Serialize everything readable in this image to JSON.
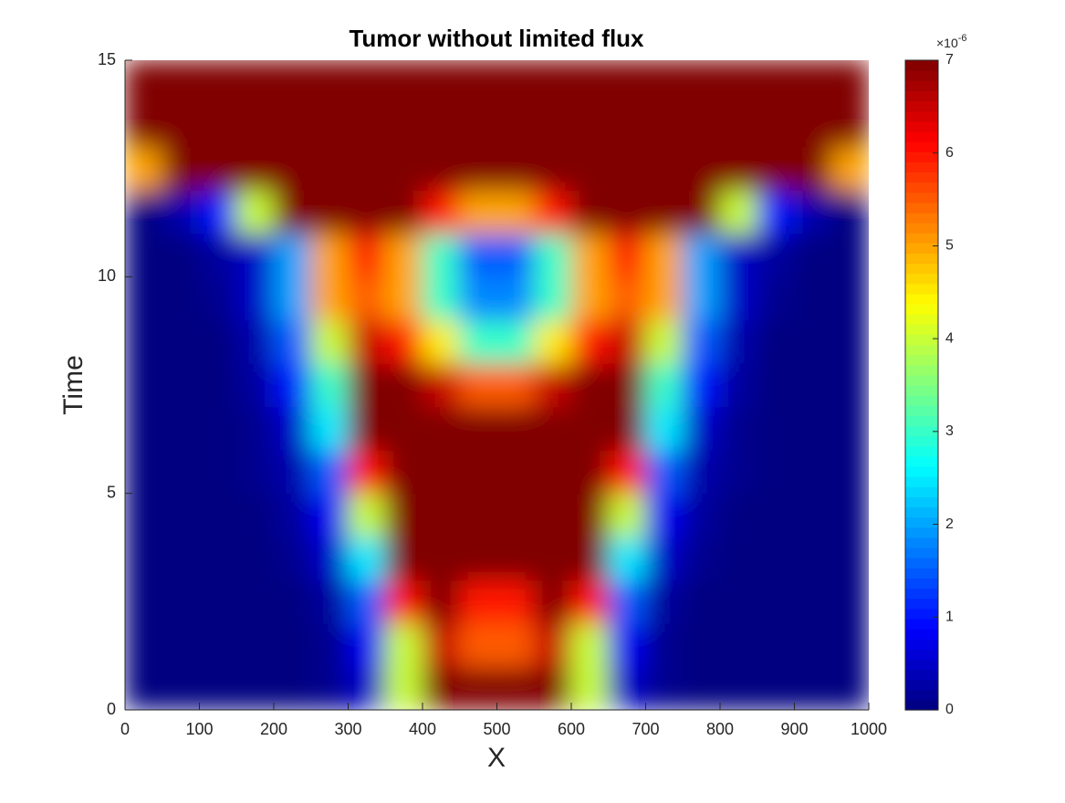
{
  "chart_data": {
    "type": "heatmap",
    "title": "Tumor without limited flux",
    "xlabel": "X",
    "ylabel": "Time",
    "colormap": "jet",
    "xlim": [
      0,
      1000
    ],
    "xticks": [
      0,
      100,
      200,
      300,
      400,
      500,
      600,
      700,
      800,
      900,
      1000
    ],
    "ylim": [
      0,
      15
    ],
    "yticks": [
      0,
      5,
      10,
      15
    ],
    "clim": [
      0,
      7
    ],
    "cticks": [
      0,
      1,
      2,
      3,
      4,
      5,
      6,
      7
    ],
    "colorbar_multiplier": {
      "base": "×10",
      "exponent": "-6"
    },
    "x": [
      25,
      75,
      125,
      175,
      225,
      275,
      325,
      375,
      425,
      475,
      525,
      575,
      625,
      675,
      725,
      775,
      825,
      875,
      925,
      975
    ],
    "y": [
      0.5,
      1.5,
      2.5,
      3.5,
      4.5,
      5.5,
      6.5,
      7.5,
      8.5,
      9.5,
      10.5,
      11.5,
      12.5,
      13.5,
      14.5
    ],
    "z": [
      [
        0,
        0,
        0,
        0,
        0,
        0.1,
        0.5,
        4,
        7,
        7,
        7,
        7,
        4,
        0.5,
        0.1,
        0,
        0,
        0,
        0,
        0
      ],
      [
        0,
        0,
        0,
        0,
        0,
        0.1,
        0.8,
        4,
        6.5,
        5.5,
        5.5,
        6.5,
        4,
        0.8,
        0.1,
        0,
        0,
        0,
        0,
        0
      ],
      [
        0,
        0,
        0,
        0,
        0,
        0.2,
        1.5,
        6,
        7,
        6,
        6,
        7,
        6,
        1.5,
        0.2,
        0,
        0,
        0,
        0,
        0
      ],
      [
        0,
        0,
        0,
        0,
        0.1,
        0.5,
        2.5,
        7,
        7,
        7,
        7,
        7,
        7,
        2.5,
        0.5,
        0.1,
        0,
        0,
        0,
        0
      ],
      [
        0,
        0,
        0,
        0,
        0.2,
        0.8,
        4,
        7,
        7,
        7,
        7,
        7,
        7,
        4,
        0.8,
        0.2,
        0,
        0,
        0,
        0
      ],
      [
        0,
        0,
        0,
        0.1,
        0.3,
        1.5,
        6,
        7,
        7,
        7,
        7,
        7,
        7,
        6,
        1.5,
        0.3,
        0.1,
        0,
        0,
        0
      ],
      [
        0,
        0,
        0,
        0.1,
        0.5,
        2.5,
        7,
        7,
        7,
        7,
        7,
        7,
        7,
        7,
        2.5,
        0.5,
        0.1,
        0,
        0,
        0
      ],
      [
        0,
        0,
        0,
        0.2,
        1,
        3,
        7,
        7,
        6.5,
        5.5,
        5.5,
        6.5,
        7,
        7,
        3,
        1,
        0.2,
        0,
        0,
        0
      ],
      [
        0,
        0,
        0,
        0.3,
        1.5,
        4,
        6.5,
        6,
        4.5,
        3,
        3,
        4.5,
        6,
        6.5,
        4,
        1.5,
        0.3,
        0,
        0,
        0
      ],
      [
        0,
        0,
        0.1,
        0.5,
        2,
        5,
        5.5,
        5,
        3,
        1.8,
        1.8,
        3,
        5,
        5.5,
        5,
        2,
        0.5,
        0.1,
        0,
        0
      ],
      [
        0,
        0,
        0.2,
        0.5,
        2,
        5,
        6,
        5,
        3,
        1.5,
        1.5,
        3,
        5,
        6,
        5,
        2,
        0.5,
        0.2,
        0,
        0
      ],
      [
        0,
        0.3,
        1,
        4,
        7,
        7,
        7,
        7,
        6,
        5,
        5,
        6,
        7,
        7,
        7,
        7,
        4,
        1,
        0.3,
        0
      ],
      [
        5,
        7,
        7,
        7,
        7,
        7,
        7,
        7,
        7,
        7,
        7,
        7,
        7,
        7,
        7,
        7,
        7,
        7,
        7,
        5
      ],
      [
        7,
        7,
        7,
        7,
        7,
        7,
        7,
        7,
        7,
        7,
        7,
        7,
        7,
        7,
        7,
        7,
        7,
        7,
        7,
        7
      ],
      [
        7,
        7,
        7,
        7,
        7,
        7,
        7,
        7,
        7,
        7,
        7,
        7,
        7,
        7,
        7,
        7,
        7,
        7,
        7,
        7
      ]
    ]
  }
}
